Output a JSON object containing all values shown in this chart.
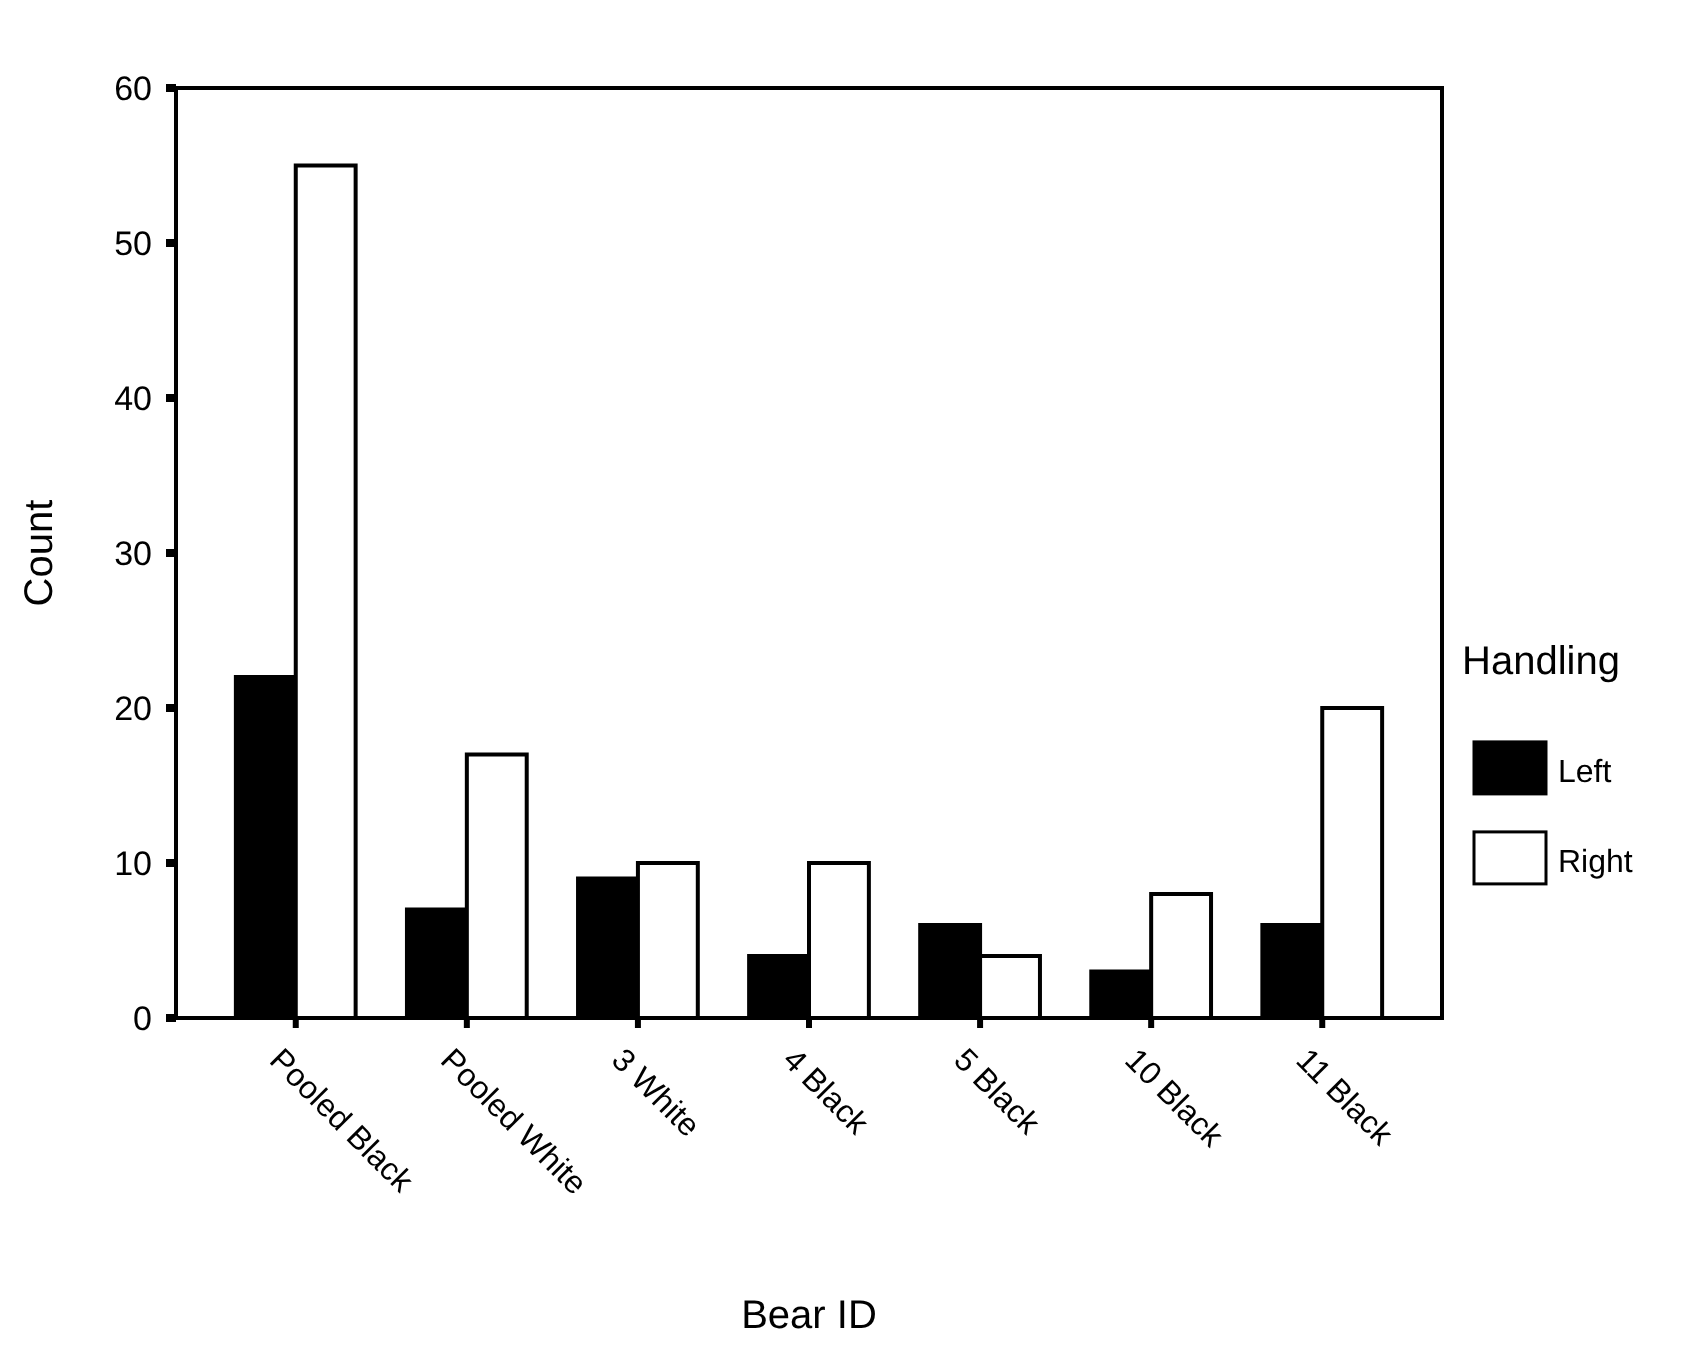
{
  "chart_data": {
    "type": "bar",
    "xlabel": "Bear ID",
    "ylabel": "Count",
    "legend_title": "Handling",
    "legend": "right",
    "categories": [
      "Pooled Black",
      "Pooled White",
      "3 White",
      "4 Black",
      "5 Black",
      "10 Black",
      "11 Black"
    ],
    "series": [
      {
        "name": "Left",
        "color": "#000000",
        "values": [
          22,
          7,
          9,
          4,
          6,
          3,
          6
        ]
      },
      {
        "name": "Right",
        "color": "#ffffff",
        "values": [
          55,
          17,
          10,
          10,
          4,
          8,
          20
        ]
      }
    ],
    "ylim": [
      0,
      60
    ],
    "yticks": [
      0,
      10,
      20,
      30,
      40,
      50,
      60
    ]
  }
}
